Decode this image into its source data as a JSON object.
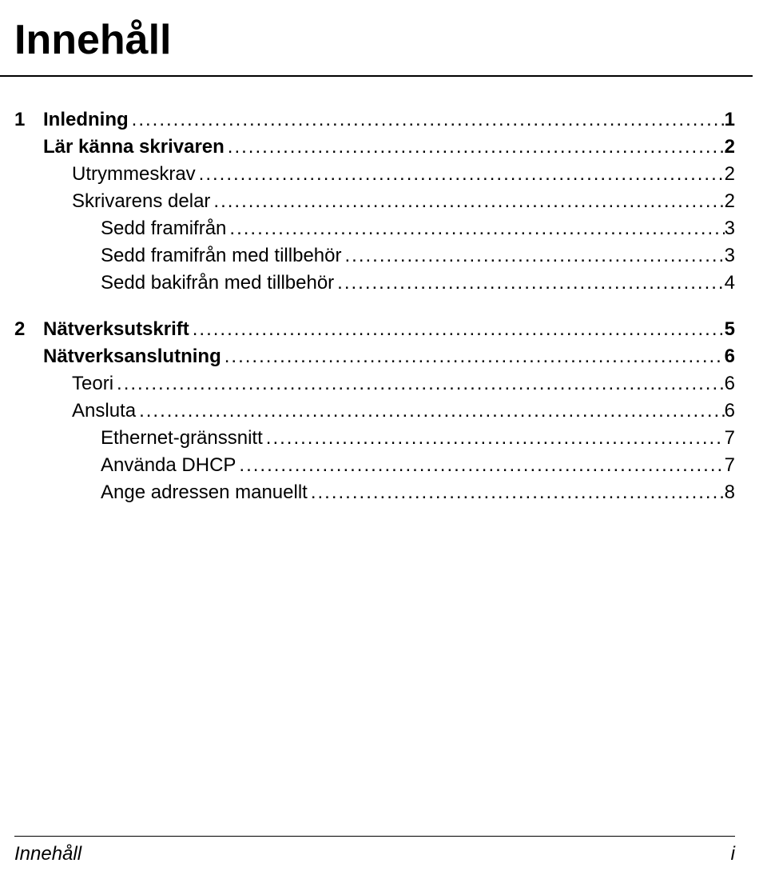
{
  "title": "Innehåll",
  "toc": [
    {
      "num": "1",
      "label": "Inledning",
      "page": "1",
      "bold": true,
      "indent": 0
    },
    {
      "num": "",
      "label": "Lär känna skrivaren",
      "page": "2",
      "bold": true,
      "indent": 1
    },
    {
      "num": "",
      "label": "Utrymmeskrav",
      "page": "2",
      "bold": false,
      "indent": 2
    },
    {
      "num": "",
      "label": "Skrivarens delar",
      "page": "2",
      "bold": false,
      "indent": 2
    },
    {
      "num": "",
      "label": "Sedd framifrån",
      "page": "3",
      "bold": false,
      "indent": 3
    },
    {
      "num": "",
      "label": "Sedd framifrån med tillbehör",
      "page": "3",
      "bold": false,
      "indent": 3
    },
    {
      "num": "",
      "label": "Sedd bakifrån med tillbehör",
      "page": "4",
      "bold": false,
      "indent": 3
    },
    {
      "gap": true
    },
    {
      "num": "2",
      "label": "Nätverksutskrift",
      "page": "5",
      "bold": true,
      "indent": 0
    },
    {
      "num": "",
      "label": "Nätverksanslutning",
      "page": "6",
      "bold": true,
      "indent": 1
    },
    {
      "num": "",
      "label": "Teori",
      "page": "6",
      "bold": false,
      "indent": 2
    },
    {
      "num": "",
      "label": "Ansluta",
      "page": "6",
      "bold": false,
      "indent": 2
    },
    {
      "num": "",
      "label": "Ethernet-gränssnitt",
      "page": "7",
      "bold": false,
      "indent": 3
    },
    {
      "num": "",
      "label": "Använda DHCP",
      "page": "7",
      "bold": false,
      "indent": 3
    },
    {
      "num": "",
      "label": "Ange adressen manuellt",
      "page": "8",
      "bold": false,
      "indent": 3
    }
  ],
  "footer": {
    "left": "Innehåll",
    "right": "i"
  },
  "style": {
    "title_fontsize": 52,
    "row_fontsize": 24,
    "text_color": "#000000",
    "background_color": "#ffffff",
    "rule_color": "#000000"
  }
}
